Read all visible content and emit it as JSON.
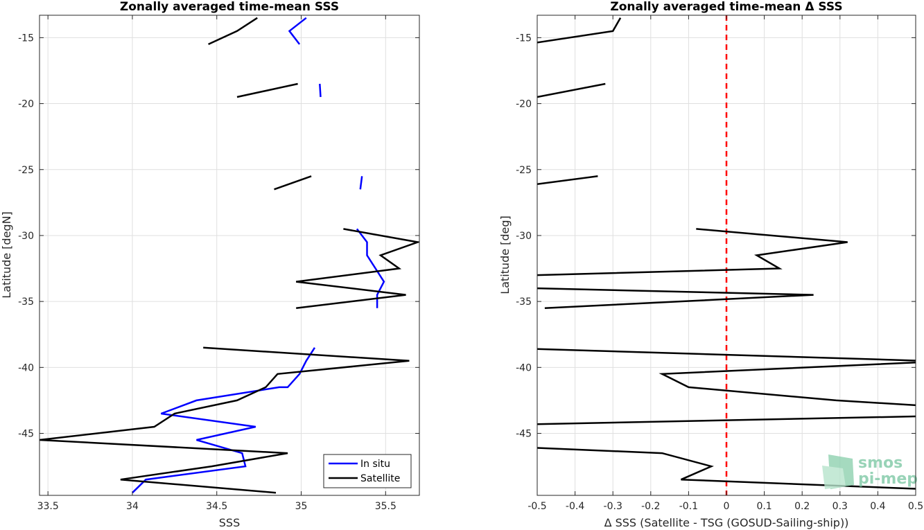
{
  "chart_data": [
    {
      "type": "line",
      "title": "Zonally averaged time-mean SSS",
      "xlabel": "SSS",
      "ylabel": "Latitude [degN]",
      "xlim": [
        33.45,
        35.7
      ],
      "ylim": [
        -49.7,
        -13.3
      ],
      "xticks": [
        33.5,
        34,
        34.5,
        35,
        35.5
      ],
      "xtick_labels": [
        "33.5",
        "34",
        "34.5",
        "35",
        "35.5"
      ],
      "yticks": [
        -15,
        -20,
        -25,
        -30,
        -35,
        -40,
        -45
      ],
      "ytick_labels": [
        "-15",
        "-20",
        "-25",
        "-30",
        "-35",
        "-40",
        "-45"
      ],
      "grid": true,
      "legend": "bottom-right",
      "series": [
        {
          "name": "In situ",
          "color": "#0000ff",
          "segments": [
            [
              [
                35.03,
                -13.5
              ],
              [
                34.93,
                -14.5
              ],
              [
                34.99,
                -15.5
              ]
            ],
            [
              [
                35.11,
                -18.5
              ],
              [
                35.115,
                -19.5
              ]
            ],
            [
              [
                35.36,
                -25.5
              ],
              [
                35.35,
                -26.5
              ]
            ],
            [
              [
                35.33,
                -29.5
              ],
              [
                35.39,
                -30.5
              ],
              [
                35.39,
                -31.5
              ],
              [
                35.44,
                -32.5
              ],
              [
                35.49,
                -33.5
              ],
              [
                35.45,
                -34.5
              ],
              [
                35.45,
                -35.5
              ]
            ],
            [
              [
                35.08,
                -38.5
              ],
              [
                35.03,
                -39.5
              ],
              [
                34.99,
                -40.5
              ],
              [
                34.92,
                -41.5
              ],
              [
                34.87,
                -41.5
              ],
              [
                34.38,
                -42.5
              ],
              [
                34.17,
                -43.5
              ],
              [
                34.73,
                -44.5
              ],
              [
                34.38,
                -45.5
              ],
              [
                34.65,
                -46.5
              ],
              [
                34.67,
                -47.5
              ],
              [
                34.08,
                -48.5
              ],
              [
                34.0,
                -49.5
              ]
            ]
          ]
        },
        {
          "name": "Satellite",
          "color": "#000000",
          "segments": [
            [
              [
                34.74,
                -13.5
              ],
              [
                34.62,
                -14.5
              ],
              [
                34.45,
                -15.5
              ]
            ],
            [
              [
                34.98,
                -18.5
              ],
              [
                34.62,
                -19.5
              ]
            ],
            [
              [
                35.06,
                -25.5
              ],
              [
                34.84,
                -26.5
              ]
            ],
            [
              [
                35.25,
                -29.5
              ],
              [
                35.69,
                -30.5
              ],
              [
                35.47,
                -31.5
              ],
              [
                35.58,
                -32.5
              ],
              [
                34.97,
                -33.5
              ],
              [
                35.62,
                -34.5
              ],
              [
                34.97,
                -35.5
              ]
            ],
            [
              [
                34.42,
                -38.5
              ],
              [
                35.64,
                -39.5
              ],
              [
                34.86,
                -40.5
              ],
              [
                34.79,
                -41.5
              ],
              [
                34.62,
                -42.5
              ],
              [
                34.25,
                -43.5
              ],
              [
                34.13,
                -44.5
              ],
              [
                33.45,
                -45.5
              ],
              [
                34.92,
                -46.5
              ],
              [
                34.47,
                -47.5
              ],
              [
                33.93,
                -48.5
              ],
              [
                34.85,
                -49.5
              ]
            ]
          ]
        }
      ]
    },
    {
      "type": "line",
      "title": "Zonally averaged time-mean Δ SSS",
      "xlabel": "Δ SSS (Satellite - TSG (GOSUD-Sailing-ship))",
      "ylabel": "Latitude [deg]",
      "xlim": [
        -0.5,
        0.5
      ],
      "ylim": [
        -49.7,
        -13.3
      ],
      "xticks": [
        -0.5,
        -0.4,
        -0.3,
        -0.2,
        -0.1,
        0,
        0.1,
        0.2,
        0.3,
        0.4,
        0.5
      ],
      "xtick_labels": [
        "-0.5",
        "-0.4",
        "-0.3",
        "-0.2",
        "-0.1",
        "0",
        "0.1",
        "0.2",
        "0.3",
        "0.4",
        "0.5"
      ],
      "yticks": [
        -15,
        -20,
        -25,
        -30,
        -35,
        -40,
        -45
      ],
      "ytick_labels": [
        "-15",
        "-20",
        "-25",
        "-30",
        "-35",
        "-40",
        "-45"
      ],
      "grid": true,
      "reference_line": {
        "x": 0,
        "color": "#ff0000",
        "style": "dashed"
      },
      "series": [
        {
          "color": "#000000",
          "segments": [
            [
              [
                -0.28,
                -13.5
              ],
              [
                -0.3,
                -14.5
              ],
              [
                -0.53,
                -15.5
              ]
            ],
            [
              [
                -0.32,
                -18.5
              ],
              [
                -0.5,
                -19.5
              ]
            ],
            [
              [
                -0.34,
                -25.5
              ],
              [
                -0.5,
                -26.1
              ]
            ],
            [
              [
                -0.08,
                -29.5
              ],
              [
                0.32,
                -30.5
              ],
              [
                0.08,
                -31.5
              ],
              [
                0.14,
                -32.5
              ],
              [
                -0.5,
                -33.0
              ]
            ],
            [
              [
                -0.5,
                -34.0
              ],
              [
                0.23,
                -34.5
              ],
              [
                -0.48,
                -35.5
              ]
            ],
            [
              [
                -0.5,
                -38.6
              ],
              [
                0.52,
                -39.5
              ]
            ],
            [
              [
                0.52,
                -39.6
              ],
              [
                -0.17,
                -40.5
              ],
              [
                -0.1,
                -41.5
              ],
              [
                0.29,
                -42.5
              ],
              [
                0.52,
                -42.9
              ]
            ],
            [
              [
                -0.5,
                -44.3
              ],
              [
                0.52,
                -43.7
              ]
            ],
            [
              [
                -0.5,
                -46.1
              ],
              [
                -0.17,
                -46.5
              ],
              [
                -0.04,
                -47.5
              ],
              [
                -0.12,
                -48.5
              ],
              [
                0.5,
                -49.2
              ]
            ]
          ]
        }
      ]
    }
  ],
  "legend": {
    "items": [
      {
        "label": "In situ",
        "color": "#0000ff"
      },
      {
        "label": "Satellite",
        "color": "#000000"
      }
    ]
  },
  "logo": {
    "line1": "smos",
    "line2": "pi-mep",
    "color": "#7fc9a6"
  }
}
